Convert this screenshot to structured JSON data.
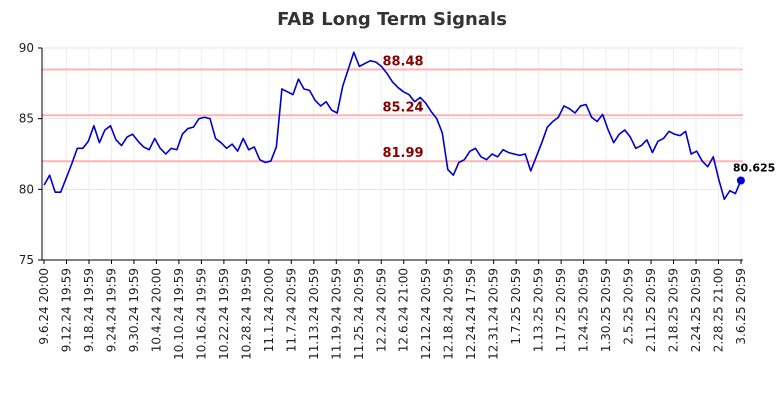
{
  "chart_data": {
    "type": "line",
    "title": "FAB Long Term Signals",
    "xlabel": "",
    "ylabel": "",
    "ylim": [
      75,
      90
    ],
    "yticks": [
      75,
      80,
      85,
      90
    ],
    "grid": true,
    "line_color": "#0000cc",
    "reference_color": "#ffb3b3",
    "reference_label_color": "#8b0000",
    "x_tick_labels": [
      "9.6.24 20:00",
      "9.12.24 19:59",
      "9.18.24 19:59",
      "9.24.24 19:59",
      "9.30.24 19:59",
      "10.4.24 20:00",
      "10.10.24 19:59",
      "10.16.24 19:59",
      "10.22.24 19:59",
      "10.28.24 19:59",
      "11.1.24 20:00",
      "11.7.24 20:59",
      "11.13.24 20:59",
      "11.19.24 20:59",
      "11.25.24 20:59",
      "12.2.24 20:59",
      "12.6.24 21:00",
      "12.12.24 20:59",
      "12.18.24 20:59",
      "12.24.24 17:59",
      "12.31.24 20:59",
      "1.7.25 20:59",
      "1.13.25 20:59",
      "1.17.25 20:59",
      "1.24.25 20:59",
      "1.30.25 20:59",
      "2.5.25 20:59",
      "2.11.25 20:59",
      "2.18.25 20:59",
      "2.24.25 20:59",
      "2.28.25 21:00",
      "3.6.25 20:59"
    ],
    "reference_lines": [
      {
        "value": 88.48,
        "label": "88.48"
      },
      {
        "value": 85.24,
        "label": "85.24"
      },
      {
        "value": 81.99,
        "label": "81.99"
      }
    ],
    "last_point_label": "80.625",
    "series": [
      {
        "values": [
          80.3,
          81.0,
          79.8,
          79.8,
          80.8,
          81.8,
          82.9,
          82.9,
          83.4,
          84.5,
          83.3,
          84.2,
          84.5,
          83.5,
          83.1,
          83.7,
          83.9,
          83.4,
          83.0,
          82.8,
          83.6,
          82.9,
          82.5,
          82.9,
          82.8,
          83.9,
          84.3,
          84.4,
          85.0,
          85.1,
          85.0,
          83.6,
          83.3,
          82.9,
          83.2,
          82.7,
          83.6,
          82.8,
          83.0,
          82.1,
          81.9,
          82.0,
          83.0,
          87.1,
          86.9,
          86.7,
          87.8,
          87.1,
          87.0,
          86.3,
          85.9,
          86.2,
          85.6,
          85.4,
          87.3,
          88.5,
          89.7,
          88.7,
          88.9,
          89.1,
          89.0,
          88.7,
          88.2,
          87.6,
          87.2,
          86.9,
          86.7,
          86.2,
          86.5,
          86.1,
          85.5,
          85.0,
          84.0,
          81.4,
          81.0,
          81.9,
          82.1,
          82.7,
          82.9,
          82.3,
          82.1,
          82.5,
          82.3,
          82.8,
          82.6,
          82.5,
          82.4,
          82.5,
          81.3,
          82.3,
          83.3,
          84.4,
          84.8,
          85.1,
          85.9,
          85.7,
          85.4,
          85.9,
          86.0,
          85.1,
          84.8,
          85.3,
          84.2,
          83.3,
          83.9,
          84.2,
          83.7,
          82.9,
          83.1,
          83.5,
          82.6,
          83.4,
          83.6,
          84.1,
          83.9,
          83.8,
          84.1,
          82.5,
          82.7,
          82.0,
          81.6,
          82.3,
          80.7,
          79.3,
          79.9,
          79.7,
          80.625
        ]
      }
    ]
  }
}
